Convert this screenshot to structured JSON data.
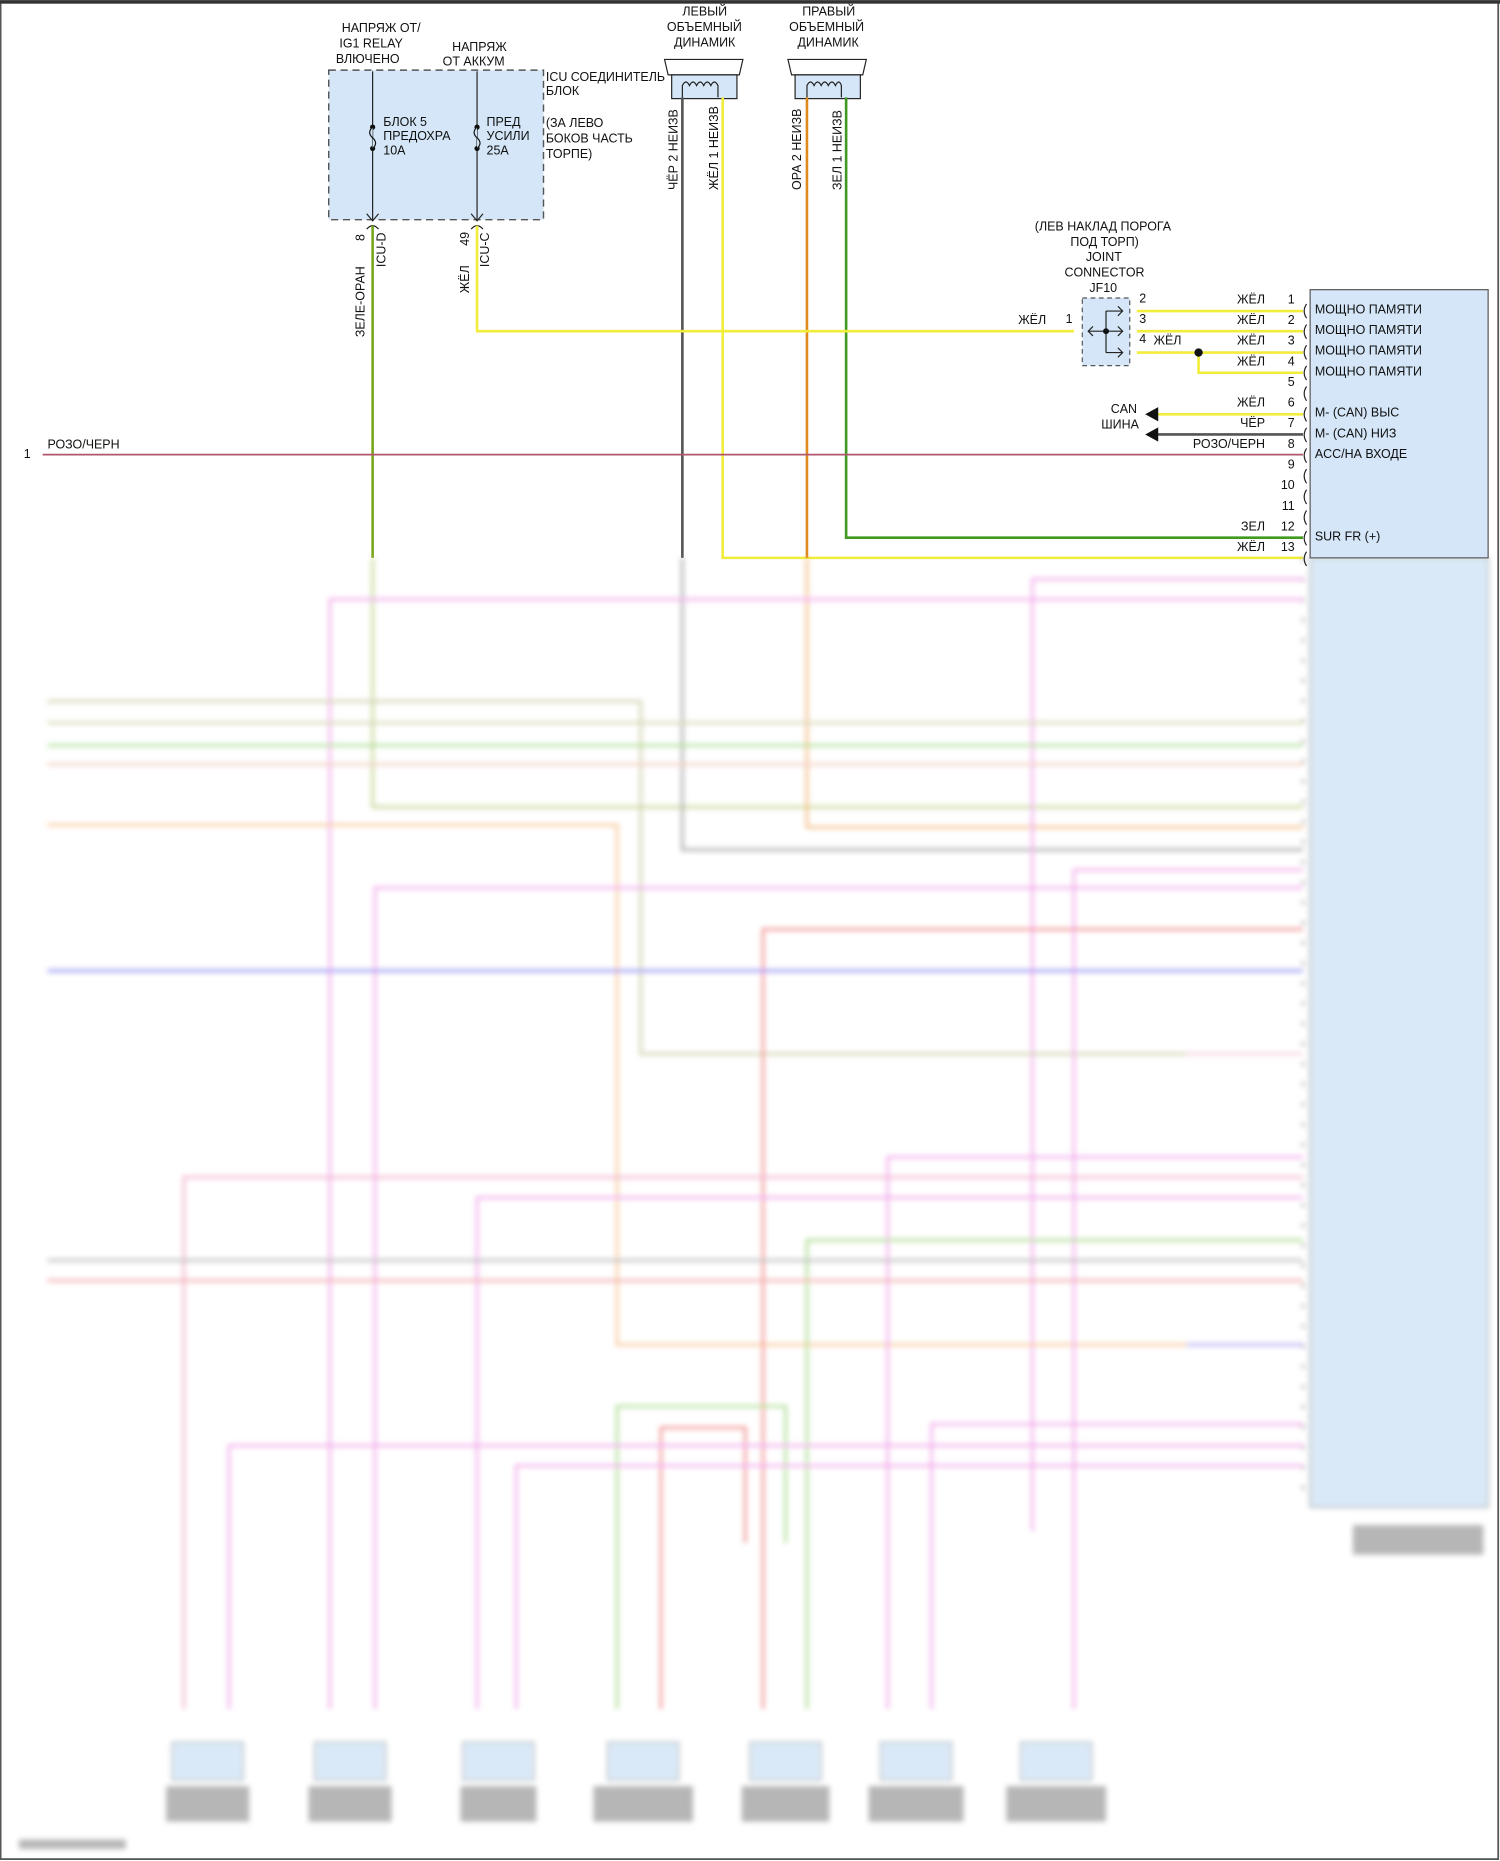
{
  "colors": {
    "yellow": "#f2ec3a",
    "green": "#3f9a1f",
    "olive_green": "#7aa51e",
    "orange": "#e08a1e",
    "black": "#555555",
    "pink_black": "#b0566e",
    "module_fill": "#d4e6f7"
  },
  "icu": {
    "supply_ig1": [
      "НАПРЯЖ ОТ/",
      "IG1 RELAY",
      "ВЛЮЧЕНО"
    ],
    "supply_batt": [
      "НАПРЯЖ",
      "ОТ АККУМ"
    ],
    "block_title": [
      "ICU СОЕДИНИТЕЛЬ",
      "БЛОК"
    ],
    "block_location": [
      "(ЗА ЛЕВО",
      "БОКОВ ЧАСТЬ",
      "ТОРПЕ)"
    ],
    "fuse1": [
      "БЛОК 5",
      "ПРЕДОХРА",
      "10A"
    ],
    "fuse2": [
      "ПРЕД",
      "УСИЛИ",
      "25A"
    ],
    "pin_d": "8",
    "conn_d": "ICU-D",
    "wire_d": "ЗЕЛЕ-ОРАН",
    "pin_c": "49",
    "conn_c": "ICU-C",
    "wire_c": "ЖЁЛ"
  },
  "speakers": [
    {
      "title": [
        "ЛЕВЫЙ",
        "ОБЪЕМНЫЙ",
        "ДИНАМИК"
      ],
      "pins": [
        {
          "text": "ЧЁР  2 НЕИЗВ"
        },
        {
          "text": "ЖЁЛ  1 НЕИЗВ"
        }
      ]
    },
    {
      "title": [
        "ПРАВЫЙ",
        "ОБЪЕМНЫЙ",
        "ДИНАМИК"
      ],
      "pins": [
        {
          "text": "ОРА  2 НЕИЗВ"
        },
        {
          "text": "ЗЕЛ  1 НЕИЗВ"
        }
      ]
    }
  ],
  "joint": {
    "title": [
      "(ЛЕВ НАКЛАД ПОРОГА",
      "ПОД ТОРП)",
      "JOINT",
      "CONNECTOR",
      "JF10"
    ],
    "pin1": "1",
    "pin2": "2",
    "pin3": "3",
    "pin4": "4",
    "wire_in": "ЖЁЛ",
    "wire_4": "ЖЁЛ"
  },
  "can_bus": [
    "CAN",
    "ШИНА"
  ],
  "left_wire": {
    "pin": "1",
    "color": "РОЗО/ЧЕРН"
  },
  "module_pins": [
    {
      "num": "1",
      "wire": "ЖЁЛ",
      "label": "МОЩНО ПАМЯТИ"
    },
    {
      "num": "2",
      "wire": "ЖЁЛ",
      "label": "МОЩНО ПАМЯТИ"
    },
    {
      "num": "3",
      "wire": "ЖЁЛ",
      "label": "МОЩНО ПАМЯТИ"
    },
    {
      "num": "4",
      "wire": "ЖЁЛ",
      "label": "МОЩНО ПАМЯТИ"
    },
    {
      "num": "5",
      "wire": "",
      "label": ""
    },
    {
      "num": "6",
      "wire": "ЖЁЛ",
      "label": "M- (CAN) ВЫС"
    },
    {
      "num": "7",
      "wire": "ЧЁР",
      "label": "M- (CAN) НИЗ"
    },
    {
      "num": "8",
      "wire": "РОЗО/ЧЕРН",
      "label": "ACC/НА ВХОДЕ"
    },
    {
      "num": "9",
      "wire": "",
      "label": ""
    },
    {
      "num": "10",
      "wire": "",
      "label": ""
    },
    {
      "num": "11",
      "wire": "",
      "label": ""
    },
    {
      "num": "12",
      "wire": "ЗЕЛ",
      "label": "SUR FR (+)"
    },
    {
      "num": "13",
      "wire": "ЖЁЛ",
      "label": ""
    }
  ]
}
